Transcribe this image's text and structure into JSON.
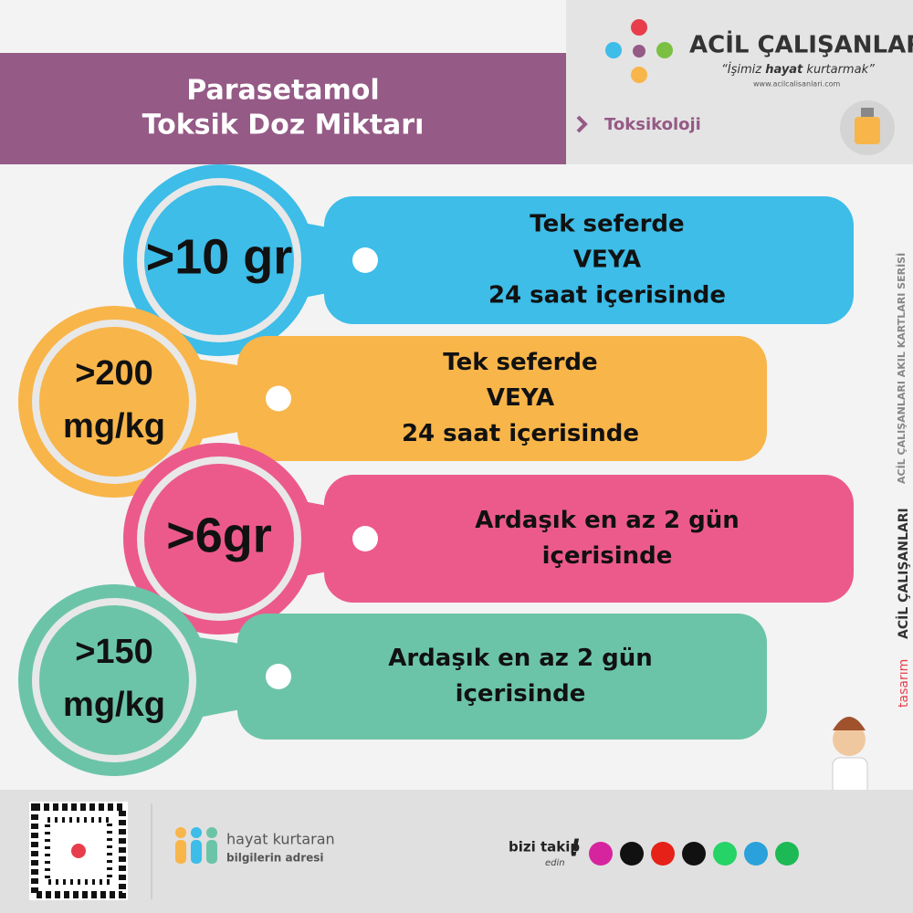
{
  "header": {
    "title": [
      "Parasetamol",
      "Toksik Doz Miktarı"
    ],
    "category": "Toksikoloji"
  },
  "brand": {
    "name": "ACİL ÇALIŞANLARI",
    "tagline": [
      "“İşimiz ",
      "hayat",
      " kurtarmak”"
    ],
    "url": "www.acilcalisanlari.com"
  },
  "side": {
    "series": "ACİL ÇALIŞANLARI AKIL KARTLARI SERİSİ",
    "design": "tasarım",
    "brand": "ACİL ÇALIŞANLARI"
  },
  "cards": [
    {
      "dose": [
        ">10 gr"
      ],
      "text": [
        "Tek seferde",
        "VEYA",
        "24 saat içerisinde"
      ],
      "color": "#3dbde8"
    },
    {
      "dose": [
        ">200",
        "mg/kg"
      ],
      "text": [
        "Tek seferde",
        "VEYA",
        "24 saat içerisinde"
      ],
      "color": "#f8b54a"
    },
    {
      "dose": [
        ">6gr"
      ],
      "text": [
        "Ardaşık en az 2 gün",
        "içerisinde"
      ],
      "color": "#ec5a8c"
    },
    {
      "dose": [
        ">150",
        "mg/kg"
      ],
      "text": [
        "Ardaşık en az 2 gün",
        "içerisinde"
      ],
      "color": "#6cc4a8"
    }
  ],
  "footer": {
    "slogan": [
      "hayat kurtaran",
      "bilgilerin adresi"
    ],
    "follow": [
      "bizi takip",
      "edin",
      "!"
    ]
  }
}
